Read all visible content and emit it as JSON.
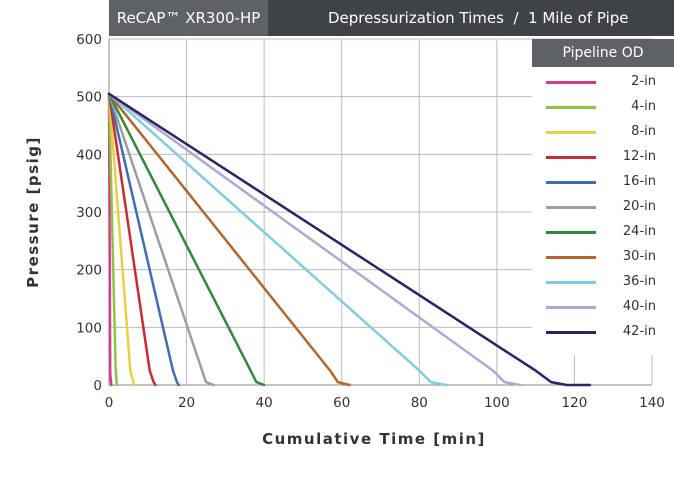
{
  "header": {
    "product": "ReCAP™ XR300-HP",
    "title": "Depressurization Times  /  1 Mile of Pipe"
  },
  "legend": {
    "title": "Pipeline OD",
    "placement": "top-right"
  },
  "chart_data": {
    "type": "line",
    "xlabel": "Cumulative Time [min]",
    "ylabel": "Pressure [psig]",
    "xlim": [
      0,
      140
    ],
    "ylim": [
      0,
      600
    ],
    "xticks": [
      0,
      20,
      40,
      60,
      80,
      100,
      120,
      140
    ],
    "yticks": [
      0,
      100,
      200,
      300,
      400,
      500,
      600
    ],
    "grid": true,
    "series": [
      {
        "name": "2-in",
        "color": "#d63a8f",
        "points": [
          [
            0,
            505
          ],
          [
            0.3,
            20
          ],
          [
            0.6,
            0
          ]
        ]
      },
      {
        "name": "4-in",
        "color": "#8cc63f",
        "points": [
          [
            0,
            505
          ],
          [
            1.7,
            30
          ],
          [
            2,
            0
          ]
        ]
      },
      {
        "name": "8-in",
        "color": "#e8d044",
        "points": [
          [
            0,
            505
          ],
          [
            5.5,
            25
          ],
          [
            6.5,
            0
          ]
        ]
      },
      {
        "name": "12-in",
        "color": "#cc2a30",
        "points": [
          [
            0,
            505
          ],
          [
            10.5,
            25
          ],
          [
            11.5,
            5
          ],
          [
            12,
            0
          ]
        ]
      },
      {
        "name": "16-in",
        "color": "#3d6eb5",
        "points": [
          [
            0,
            505
          ],
          [
            16.5,
            25
          ],
          [
            17.5,
            5
          ],
          [
            18,
            0
          ]
        ]
      },
      {
        "name": "20-in",
        "color": "#9e9e9e",
        "points": [
          [
            0,
            505
          ],
          [
            24,
            25
          ],
          [
            25,
            5
          ],
          [
            27,
            0
          ]
        ]
      },
      {
        "name": "24-in",
        "color": "#2e8a3a",
        "points": [
          [
            0,
            505
          ],
          [
            36.5,
            25
          ],
          [
            38,
            5
          ],
          [
            40,
            0
          ]
        ]
      },
      {
        "name": "30-in",
        "color": "#b5642c",
        "points": [
          [
            0,
            505
          ],
          [
            57,
            25
          ],
          [
            59,
            5
          ],
          [
            62,
            0
          ]
        ]
      },
      {
        "name": "36-in",
        "color": "#7fcde0",
        "points": [
          [
            0,
            505
          ],
          [
            80,
            25
          ],
          [
            83,
            5
          ],
          [
            87,
            0
          ]
        ]
      },
      {
        "name": "40-in",
        "color": "#b3a6d6",
        "points": [
          [
            0,
            505
          ],
          [
            99,
            25
          ],
          [
            102,
            5
          ],
          [
            106,
            0
          ]
        ]
      },
      {
        "name": "42-in",
        "color": "#26246b",
        "points": [
          [
            0,
            505
          ],
          [
            110,
            25
          ],
          [
            114,
            5
          ],
          [
            118,
            0
          ],
          [
            124,
            0
          ]
        ]
      }
    ]
  }
}
